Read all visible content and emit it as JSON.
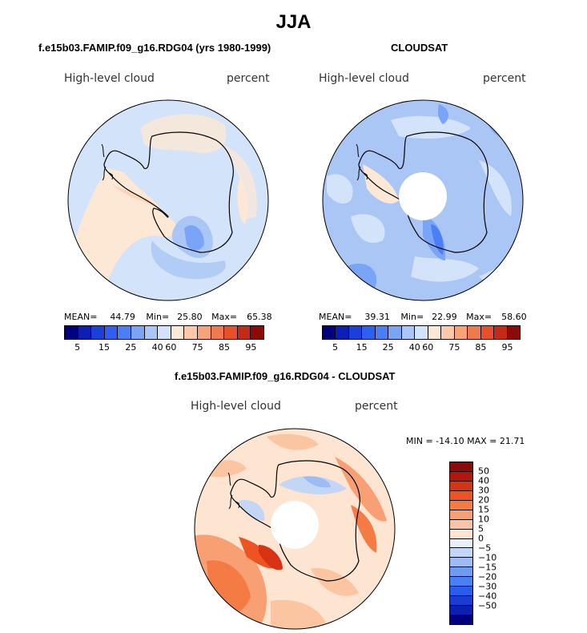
{
  "title": "JJA",
  "panel_left": {
    "subtitle": "f.e15b03.FAMIP.f09_g16.RDG04 (yrs 1980-1999)",
    "left_label": "High-level cloud",
    "right_label": "percent",
    "stats": {
      "mean_label": "MEAN=",
      "mean": "44.79",
      "min_label": "Min=",
      "min": "25.80",
      "max_label": "Max=",
      "max": "65.38"
    }
  },
  "panel_right": {
    "subtitle": "CLOUDSAT",
    "left_label": "High-level cloud",
    "right_label": "percent",
    "stats": {
      "mean_label": "MEAN=",
      "mean": "39.31",
      "min_label": "Min=",
      "min": "22.99",
      "max_label": "Max=",
      "max": "58.60"
    }
  },
  "panel_diff": {
    "subtitle": "f.e15b03.FAMIP.f09_g16.RDG04 - CLOUDSAT",
    "left_label": "High-level cloud",
    "right_label": "percent",
    "minmax": "MIN = -14.10 MAX =  21.71"
  },
  "colorbar_abs": {
    "colors": [
      "#00007f",
      "#0d1fb2",
      "#1b3fd9",
      "#2d5ff0",
      "#4a7ff5",
      "#7aa4f6",
      "#a9c6f4",
      "#d3e3f9",
      "#fde7d5",
      "#fcc8a7",
      "#f7a377",
      "#f07a50",
      "#e8502a",
      "#c42a14",
      "#8b0b0b"
    ],
    "ticks": [
      "5",
      "15",
      "25",
      "40",
      "60",
      "75",
      "85",
      "95"
    ]
  },
  "colorbar_diff": {
    "colors": [
      "#8b0b0b",
      "#b5150d",
      "#d83214",
      "#ee5422",
      "#f57b45",
      "#f8a074",
      "#fbc5a2",
      "#fde5d2",
      "#e8f1fb",
      "#c3d6f5",
      "#9dbcf4",
      "#6f9cf2",
      "#4a7ff5",
      "#2a5ced",
      "#1a3cd5",
      "#0c1fb0",
      "#00007f"
    ],
    "ticks": [
      "50",
      "40",
      "30",
      "20",
      "15",
      "10",
      "5",
      "0",
      "−5",
      "−10",
      "−15",
      "−20",
      "−30",
      "−40",
      "−50"
    ]
  }
}
